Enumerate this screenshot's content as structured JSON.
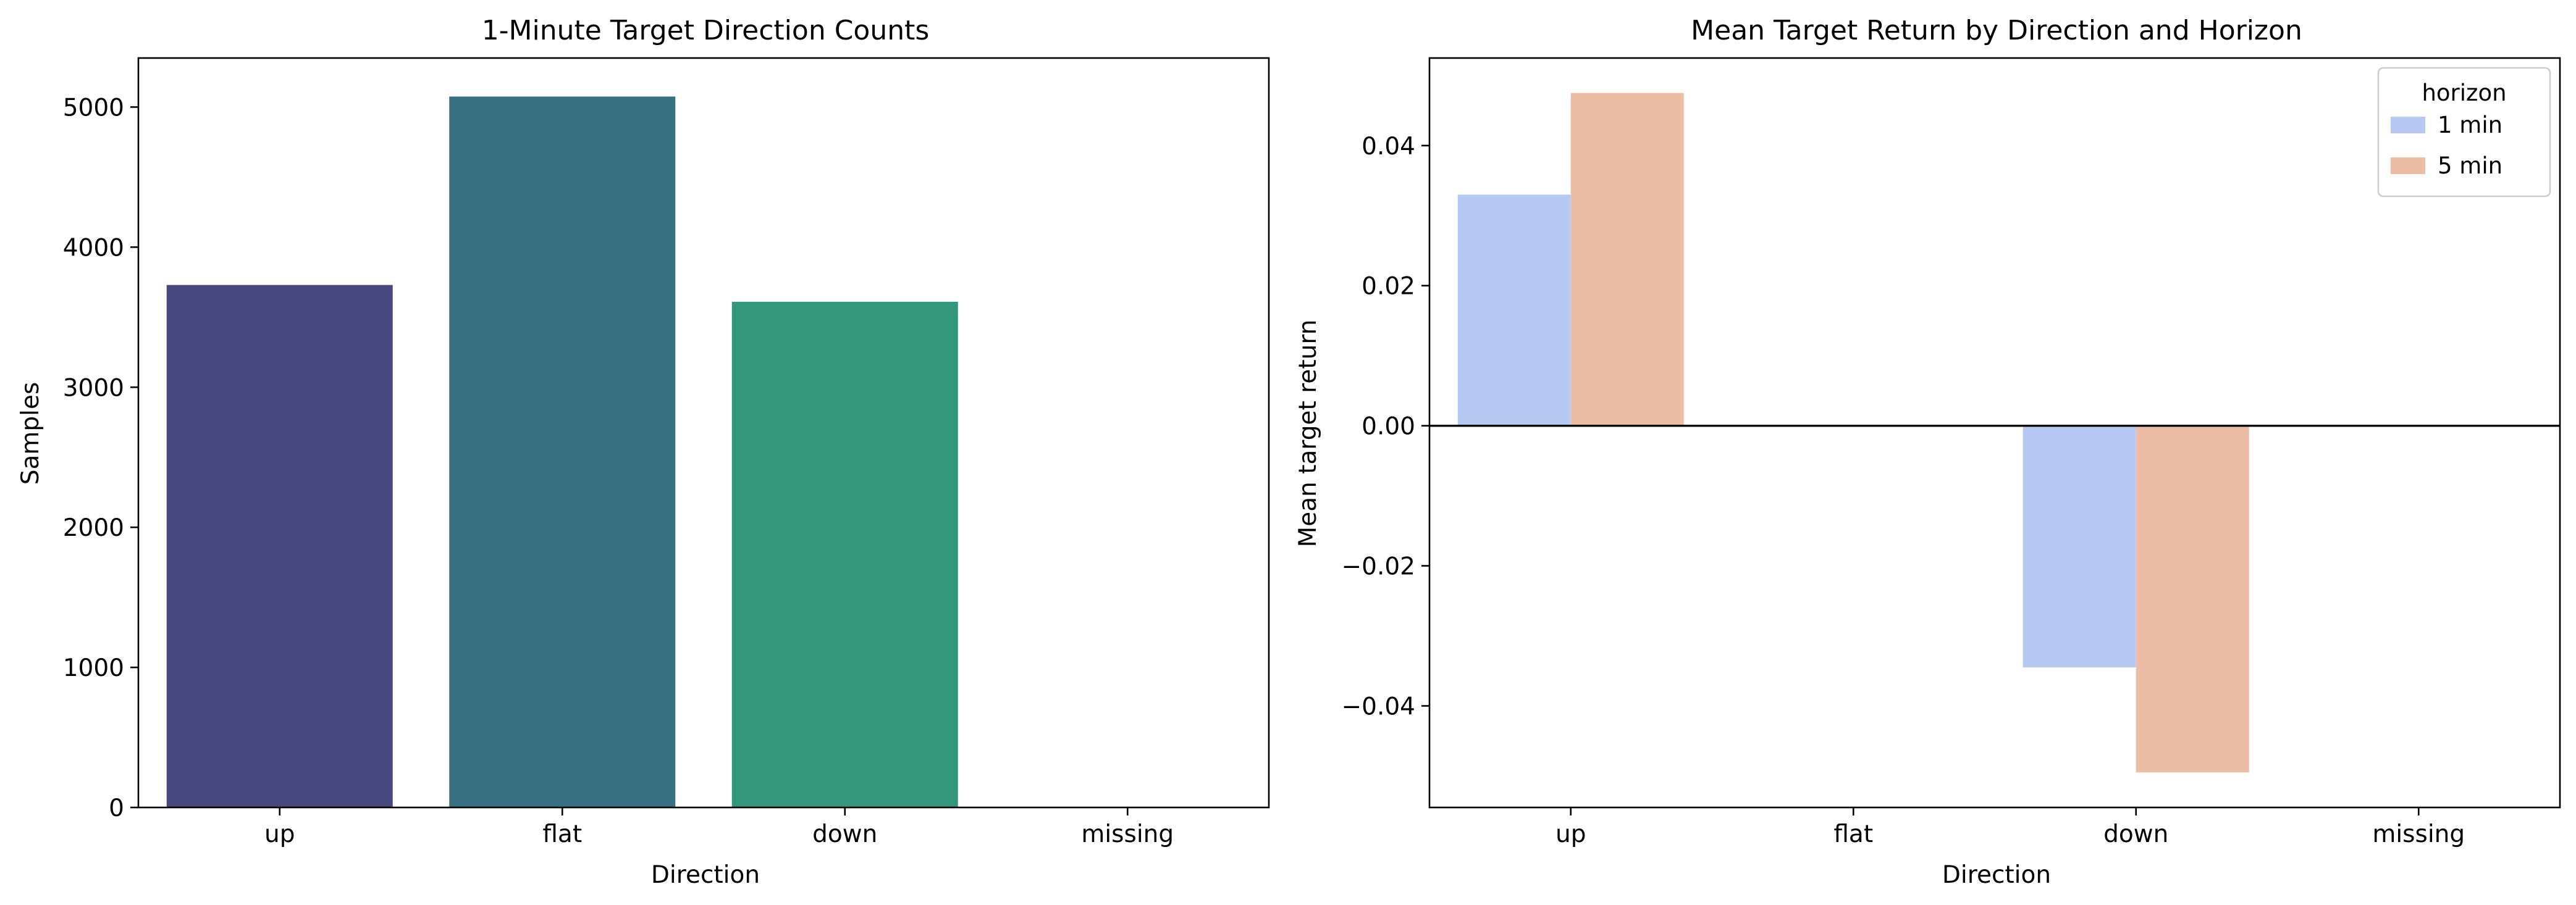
{
  "chart_data": [
    {
      "type": "bar",
      "title": "1-Minute Target Direction Counts",
      "xlabel": "Direction",
      "ylabel": "Samples",
      "categories": [
        "up",
        "flat",
        "down",
        "missing"
      ],
      "values": [
        3730,
        5075,
        3610,
        0
      ],
      "colors": [
        "#48497f",
        "#37717f",
        "#33977b",
        null
      ],
      "ylim": [
        0,
        5350
      ],
      "yticks": [
        0,
        1000,
        2000,
        3000,
        4000,
        5000
      ],
      "ytick_labels": [
        "0",
        "1000",
        "2000",
        "3000",
        "4000",
        "5000"
      ],
      "grid": false
    },
    {
      "type": "bar",
      "title": "Mean Target Return by Direction and Horizon",
      "xlabel": "Direction",
      "ylabel": "Mean target return",
      "categories": [
        "up",
        "flat",
        "down",
        "missing"
      ],
      "series": [
        {
          "name": "1 min",
          "values": [
            0.033,
            0,
            -0.0345,
            0
          ],
          "color": "#b5c9f3"
        },
        {
          "name": "5 min",
          "values": [
            0.0475,
            0,
            -0.0495,
            0
          ],
          "color": "#ecbca5"
        }
      ],
      "ylim": [
        -0.0545,
        0.0525
      ],
      "yticks": [
        -0.04,
        -0.02,
        0.0,
        0.02,
        0.04
      ],
      "ytick_labels": [
        "−0.04",
        "−0.02",
        "0.00",
        "0.02",
        "0.04"
      ],
      "zero_line": true,
      "legend": {
        "title": "horizon",
        "placement": "top-right"
      },
      "grid": false
    }
  ]
}
